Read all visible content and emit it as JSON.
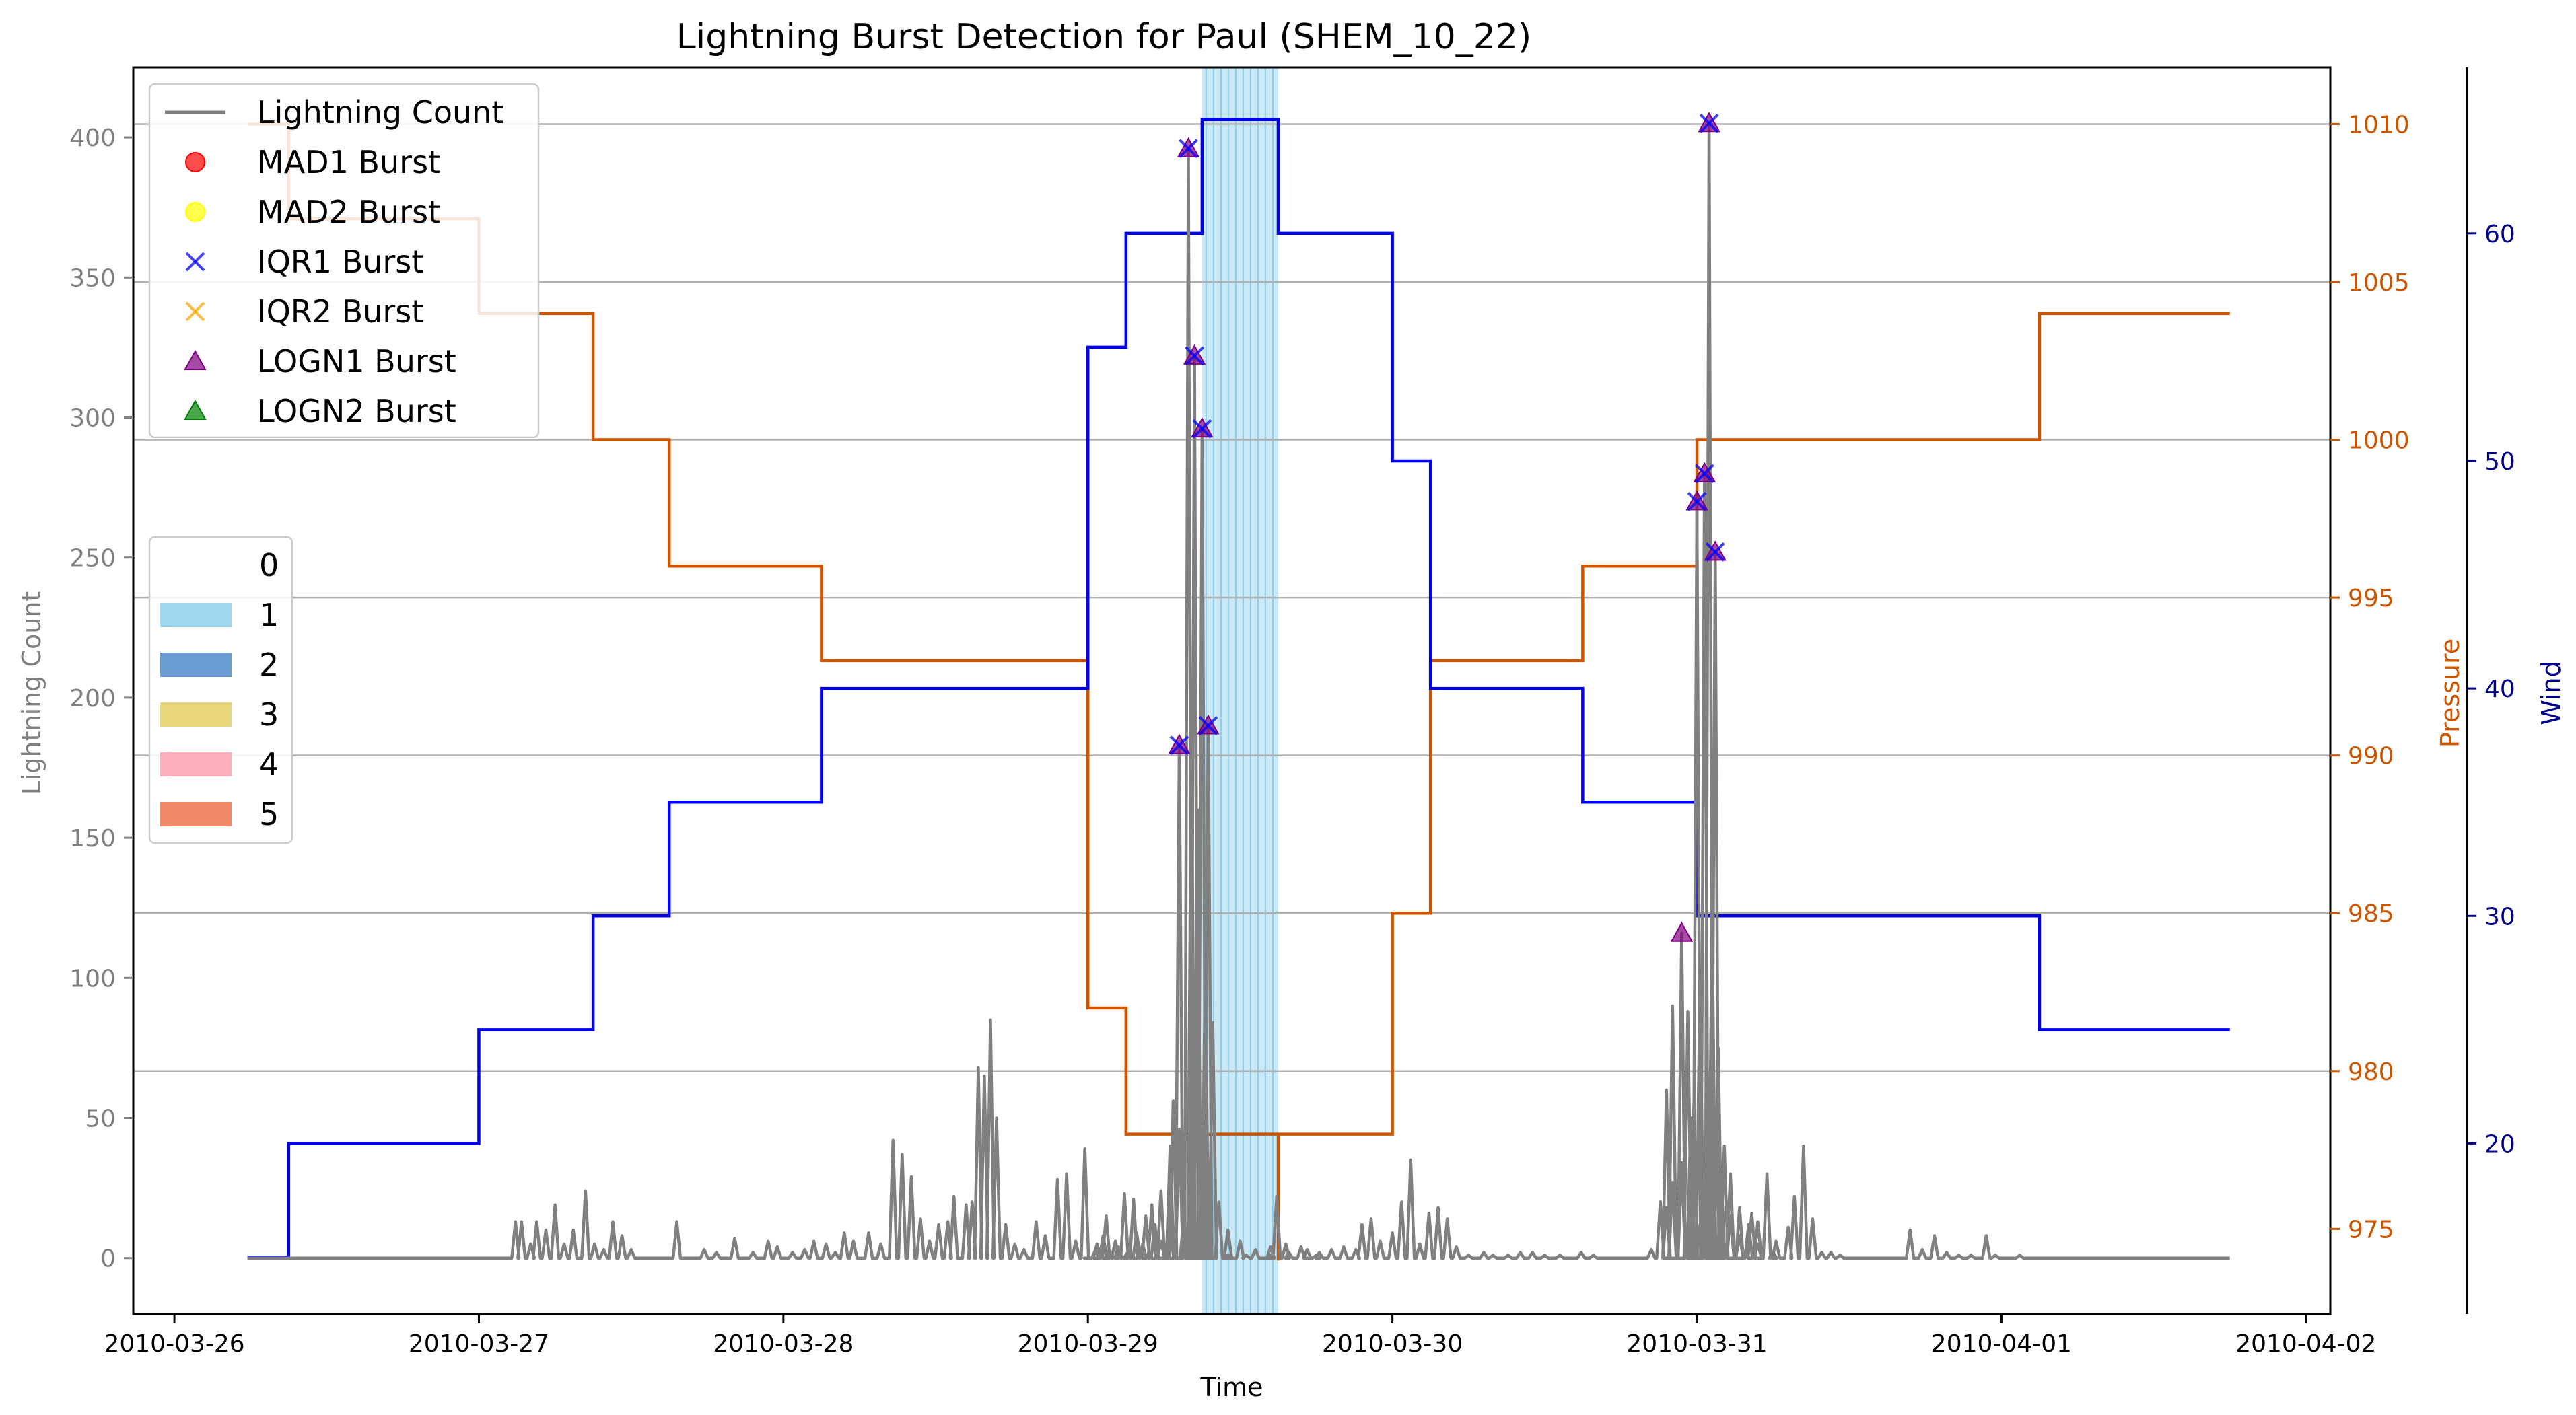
{
  "chart_data": {
    "type": "line",
    "title": "Lightning Burst Detection for Paul (SHEM_10_22)",
    "xlabel": "Time",
    "ylabel_left": "Lightning Count",
    "ylabel_pressure": "Pressure",
    "ylabel_wind": "Wind",
    "x_ticks": [
      "2010-03-26",
      "2010-03-27",
      "2010-03-28",
      "2010-03-29",
      "2010-03-30",
      "2010-03-31",
      "2010-04-01",
      "2010-04-02"
    ],
    "xlim_days": [
      -0.135,
      7.08
    ],
    "ylim_left": [
      -20,
      425
    ],
    "yticks_left": [
      0,
      50,
      100,
      150,
      200,
      250,
      300,
      350,
      400
    ],
    "ylim_pressure": [
      972.3,
      1011.8
    ],
    "yticks_pressure": [
      975,
      980,
      985,
      990,
      995,
      1000,
      1005,
      1010
    ],
    "ylim_wind": [
      12.5,
      67.3
    ],
    "yticks_wind": [
      20,
      30,
      40,
      50,
      60
    ],
    "grid": "horizontal",
    "colors": {
      "lightning": "#808080",
      "pressure": "#cc5500",
      "wind": "#0000ee",
      "pressure_axis": "#cc5500",
      "wind_axis": "#00008b",
      "left_axis": "#808080",
      "span_1": "#87ceeb",
      "logn": "#800080",
      "iqr": "#0000ff"
    },
    "legend_series": {
      "placement": "upper-left",
      "entries": [
        {
          "label": "Lightning Count",
          "kind": "line",
          "color": "#808080"
        },
        {
          "label": "MAD1 Burst",
          "kind": "circle",
          "color": "#ff0000"
        },
        {
          "label": "MAD2 Burst",
          "kind": "circle",
          "color": "#ffff00"
        },
        {
          "label": "IQR1 Burst",
          "kind": "x",
          "color": "#0000ff"
        },
        {
          "label": "IQR2 Burst",
          "kind": "x",
          "color": "#ffa500"
        },
        {
          "label": "LOGN1 Burst",
          "kind": "triangle",
          "color": "#800080"
        },
        {
          "label": "LOGN2 Burst",
          "kind": "triangle",
          "color": "#008000"
        }
      ]
    },
    "legend_category": {
      "placement": "center-left",
      "entries": [
        {
          "label": "0",
          "color": "#ffffff"
        },
        {
          "label": "1",
          "color": "#87ceeb"
        },
        {
          "label": "2",
          "color": "#4682c8"
        },
        {
          "label": "3",
          "color": "#e3cc5c"
        },
        {
          "label": "4",
          "color": "#ff9aaa"
        },
        {
          "label": "5",
          "color": "#f06a40"
        }
      ]
    },
    "category_span": {
      "category": "1",
      "x_days": [
        3.375,
        3.625
      ]
    },
    "pressure_steps": [
      [
        0.24,
        1010
      ],
      [
        0.375,
        1007
      ],
      [
        1.0,
        1004
      ],
      [
        1.375,
        1000
      ],
      [
        1.625,
        996
      ],
      [
        2.125,
        993
      ],
      [
        3.0,
        982
      ],
      [
        3.125,
        978
      ],
      [
        3.625,
        974
      ],
      [
        3.625,
        978
      ],
      [
        4.0,
        985
      ],
      [
        4.125,
        993
      ],
      [
        4.625,
        996
      ],
      [
        5.0,
        1000
      ],
      [
        6.125,
        1004
      ],
      [
        6.75,
        1004
      ]
    ],
    "wind_steps": [
      [
        0.24,
        15
      ],
      [
        0.375,
        20
      ],
      [
        1.0,
        25
      ],
      [
        1.375,
        30
      ],
      [
        1.625,
        35
      ],
      [
        2.125,
        40
      ],
      [
        3.0,
        55
      ],
      [
        3.125,
        60
      ],
      [
        3.375,
        65
      ],
      [
        3.625,
        60
      ],
      [
        4.0,
        50
      ],
      [
        4.125,
        40
      ],
      [
        4.625,
        35
      ],
      [
        5.0,
        30
      ],
      [
        6.125,
        25
      ],
      [
        6.75,
        25
      ]
    ],
    "lightning_spikes": [
      [
        1.12,
        13
      ],
      [
        1.14,
        13
      ],
      [
        1.17,
        5
      ],
      [
        1.19,
        13
      ],
      [
        1.22,
        10
      ],
      [
        1.25,
        19
      ],
      [
        1.28,
        5
      ],
      [
        1.31,
        10
      ],
      [
        1.35,
        24
      ],
      [
        1.38,
        5
      ],
      [
        1.41,
        3
      ],
      [
        1.44,
        13
      ],
      [
        1.47,
        8
      ],
      [
        1.5,
        3
      ],
      [
        1.65,
        13
      ],
      [
        1.74,
        3
      ],
      [
        1.78,
        2
      ],
      [
        1.84,
        7
      ],
      [
        1.9,
        2
      ],
      [
        1.95,
        6
      ],
      [
        1.98,
        4
      ],
      [
        2.03,
        2
      ],
      [
        2.07,
        3
      ],
      [
        2.1,
        6
      ],
      [
        2.14,
        5
      ],
      [
        2.17,
        2
      ],
      [
        2.2,
        9
      ],
      [
        2.23,
        6
      ],
      [
        2.28,
        9
      ],
      [
        2.32,
        5
      ],
      [
        2.36,
        42
      ],
      [
        2.39,
        37
      ],
      [
        2.42,
        29
      ],
      [
        2.45,
        14
      ],
      [
        2.48,
        6
      ],
      [
        2.51,
        12
      ],
      [
        2.54,
        13
      ],
      [
        2.56,
        22
      ],
      [
        2.6,
        19
      ],
      [
        2.62,
        20
      ],
      [
        2.64,
        68
      ],
      [
        2.66,
        65
      ],
      [
        2.68,
        85
      ],
      [
        2.7,
        50
      ],
      [
        2.73,
        12
      ],
      [
        2.76,
        5
      ],
      [
        2.79,
        3
      ],
      [
        2.83,
        13
      ],
      [
        2.86,
        8
      ],
      [
        2.9,
        28
      ],
      [
        2.93,
        30
      ],
      [
        2.96,
        6
      ],
      [
        2.99,
        39
      ],
      [
        3.03,
        5
      ],
      [
        3.06,
        15
      ],
      [
        3.09,
        6
      ],
      [
        3.12,
        23
      ],
      [
        3.15,
        21
      ],
      [
        3.18,
        5
      ],
      [
        3.21,
        19
      ],
      [
        3.24,
        6
      ],
      [
        3.27,
        9
      ],
      [
        3.3,
        46
      ],
      [
        3.34,
        5
      ],
      [
        3.37,
        46
      ],
      [
        3.4,
        2
      ],
      [
        3.46,
        1
      ],
      [
        3.52,
        1
      ],
      [
        3.6,
        1
      ],
      [
        3.66,
        2
      ],
      [
        3.72,
        3
      ],
      [
        3.76,
        2
      ],
      [
        3.8,
        3
      ],
      [
        3.84,
        4
      ],
      [
        3.88,
        3
      ],
      [
        3.9,
        12
      ],
      [
        3.93,
        14
      ],
      [
        3.96,
        6
      ],
      [
        4.0,
        9
      ],
      [
        4.03,
        20
      ],
      [
        4.06,
        35
      ],
      [
        4.09,
        5
      ],
      [
        4.12,
        16
      ],
      [
        4.15,
        18
      ],
      [
        4.18,
        14
      ],
      [
        4.21,
        4
      ],
      [
        4.25,
        1
      ],
      [
        4.3,
        2
      ],
      [
        4.33,
        1
      ],
      [
        4.38,
        1
      ],
      [
        4.42,
        2
      ],
      [
        4.46,
        2
      ],
      [
        4.5,
        1
      ],
      [
        4.55,
        1
      ],
      [
        4.62,
        2
      ],
      [
        4.66,
        1
      ],
      [
        4.9,
        18
      ],
      [
        4.92,
        27
      ],
      [
        4.95,
        34
      ],
      [
        4.98,
        50
      ],
      [
        5.01,
        12
      ],
      [
        5.04,
        8
      ],
      [
        5.08,
        29
      ],
      [
        5.11,
        30
      ],
      [
        5.14,
        18
      ],
      [
        5.18,
        16
      ],
      [
        5.2,
        13
      ],
      [
        5.23,
        30
      ],
      [
        5.26,
        6
      ],
      [
        5.3,
        11
      ],
      [
        5.32,
        22
      ],
      [
        5.35,
        40
      ],
      [
        5.38,
        14
      ],
      [
        5.41,
        2
      ],
      [
        5.44,
        2
      ],
      [
        5.47,
        1
      ],
      [
        5.7,
        10
      ],
      [
        5.74,
        3
      ],
      [
        5.78,
        8
      ],
      [
        5.82,
        2
      ],
      [
        5.86,
        1
      ],
      [
        5.9,
        1
      ],
      [
        5.95,
        8
      ],
      [
        5.98,
        1
      ],
      [
        6.06,
        1
      ]
    ],
    "lightning_peaks": [
      [
        3.0,
        0
      ],
      [
        3.025,
        3
      ],
      [
        3.05,
        8
      ],
      [
        3.07,
        3
      ],
      [
        3.1,
        4
      ],
      [
        3.13,
        2
      ],
      [
        3.16,
        9
      ],
      [
        3.19,
        15
      ],
      [
        3.22,
        12
      ],
      [
        3.24,
        24
      ],
      [
        3.27,
        40
      ],
      [
        3.28,
        56
      ],
      [
        3.3,
        183
      ],
      [
        3.315,
        15
      ],
      [
        3.33,
        396
      ],
      [
        3.34,
        190
      ],
      [
        3.35,
        322
      ],
      [
        3.36,
        160
      ],
      [
        3.375,
        296
      ],
      [
        3.385,
        100
      ],
      [
        3.395,
        190
      ],
      [
        3.41,
        84
      ],
      [
        3.43,
        20
      ],
      [
        3.46,
        10
      ],
      [
        3.5,
        6
      ],
      [
        3.55,
        3
      ],
      [
        3.6,
        4
      ],
      [
        3.62,
        22
      ],
      [
        3.65,
        5
      ],
      [
        3.7,
        4
      ],
      [
        3.72,
        3
      ],
      [
        3.75,
        1
      ],
      [
        4.85,
        3
      ],
      [
        4.88,
        20
      ],
      [
        4.9,
        60
      ],
      [
        4.92,
        90
      ],
      [
        4.95,
        116
      ],
      [
        4.97,
        88
      ],
      [
        4.99,
        55
      ],
      [
        5.0,
        270
      ],
      [
        5.01,
        100
      ],
      [
        5.025,
        280
      ],
      [
        5.04,
        405
      ],
      [
        5.05,
        120
      ],
      [
        5.06,
        252
      ],
      [
        5.07,
        75
      ],
      [
        5.09,
        40
      ],
      [
        5.11,
        15
      ],
      [
        5.14,
        8
      ],
      [
        5.17,
        12
      ],
      [
        5.2,
        5
      ],
      [
        5.25,
        2
      ]
    ],
    "logn1_bursts": [
      [
        3.3,
        183
      ],
      [
        3.33,
        396
      ],
      [
        3.35,
        322
      ],
      [
        3.375,
        296
      ],
      [
        3.395,
        190
      ],
      [
        4.95,
        116
      ],
      [
        5.0,
        270
      ],
      [
        5.025,
        280
      ],
      [
        5.04,
        405
      ],
      [
        5.06,
        252
      ]
    ],
    "iqr1_bursts": [
      [
        3.3,
        183
      ],
      [
        3.33,
        396
      ],
      [
        3.35,
        322
      ],
      [
        3.375,
        296
      ],
      [
        3.395,
        190
      ],
      [
        5.0,
        270
      ],
      [
        5.025,
        280
      ],
      [
        5.04,
        405
      ],
      [
        5.06,
        252
      ]
    ]
  }
}
